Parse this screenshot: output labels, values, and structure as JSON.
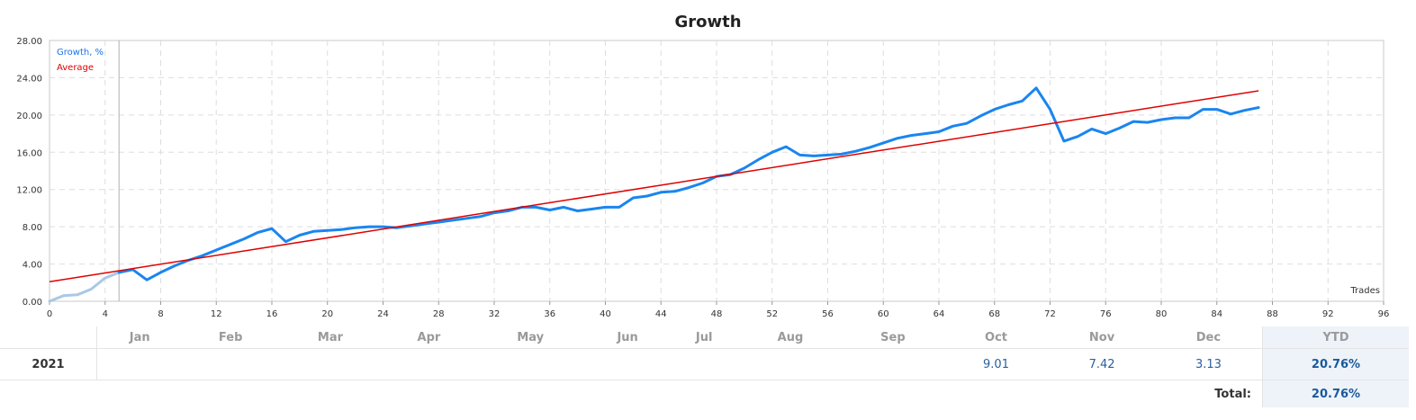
{
  "chart_data": {
    "type": "line",
    "title": "Growth",
    "xlabel": "Trades",
    "ylabel": "",
    "xlim": [
      0,
      96
    ],
    "ylim": [
      0,
      28
    ],
    "x_ticks": [
      0,
      4,
      8,
      12,
      16,
      20,
      24,
      28,
      32,
      36,
      40,
      44,
      48,
      52,
      56,
      60,
      64,
      68,
      72,
      76,
      80,
      84,
      88,
      92,
      96
    ],
    "y_ticks": [
      "0.00",
      "4.00",
      "8.00",
      "12.00",
      "16.00",
      "20.00",
      "24.00",
      "28.00"
    ],
    "grid": true,
    "legend": "top-left",
    "colors": {
      "growth": "#1a85f0",
      "growth_pre": "#a9c8e6",
      "average": "#e00000",
      "marker": "#b0b0b0"
    },
    "marker_x": 5,
    "series": [
      {
        "name": "Growth, %",
        "x": [
          0,
          1,
          2,
          3,
          4,
          5,
          6,
          7,
          8,
          9,
          10,
          11,
          12,
          13,
          14,
          15,
          16,
          17,
          18,
          19,
          20,
          21,
          22,
          23,
          24,
          25,
          26,
          27,
          28,
          29,
          30,
          31,
          32,
          33,
          34,
          35,
          36,
          37,
          38,
          39,
          40,
          41,
          42,
          43,
          44,
          45,
          46,
          47,
          48,
          49,
          50,
          51,
          52,
          53,
          54,
          55,
          56,
          57,
          58,
          59,
          60,
          61,
          62,
          63,
          64,
          65,
          66,
          67,
          68,
          69,
          70,
          71,
          72,
          73,
          74,
          75,
          76,
          77,
          78,
          79,
          80,
          81,
          82,
          83,
          84,
          85,
          86,
          87
        ],
        "y": [
          0.0,
          0.6,
          0.7,
          1.3,
          2.5,
          3.1,
          3.4,
          2.3,
          3.1,
          3.8,
          4.4,
          4.9,
          5.5,
          6.1,
          6.7,
          7.4,
          7.8,
          6.4,
          7.1,
          7.5,
          7.6,
          7.7,
          7.9,
          8.0,
          8.0,
          7.9,
          8.1,
          8.3,
          8.5,
          8.7,
          8.9,
          9.1,
          9.5,
          9.7,
          10.1,
          10.1,
          9.8,
          10.1,
          9.7,
          9.9,
          10.1,
          10.1,
          11.1,
          11.3,
          11.7,
          11.8,
          12.2,
          12.7,
          13.4,
          13.6,
          14.3,
          15.2,
          16.0,
          16.6,
          15.7,
          15.6,
          15.7,
          15.8,
          16.1,
          16.5,
          17.0,
          17.5,
          17.8,
          18.0,
          18.2,
          18.8,
          19.1,
          19.9,
          20.6,
          21.1,
          21.5,
          22.9,
          20.6,
          17.2,
          17.7,
          18.5,
          18.0,
          18.6,
          19.3,
          19.2,
          19.5,
          19.7,
          19.7,
          20.6,
          20.6,
          20.1,
          20.5,
          20.8
        ]
      },
      {
        "name": "Average",
        "x": [
          0,
          87
        ],
        "y": [
          2.1,
          22.6
        ]
      }
    ]
  },
  "summary": {
    "months": [
      "Jan",
      "Feb",
      "Mar",
      "Apr",
      "May",
      "Jun",
      "Jul",
      "Aug",
      "Sep",
      "Oct",
      "Nov",
      "Dec"
    ],
    "ytd_label": "YTD",
    "year": "2021",
    "values": [
      "",
      "",
      "",
      "",
      "",
      "",
      "",
      "",
      "",
      "9.01",
      "7.42",
      "3.13"
    ],
    "ytd": "20.76%",
    "total_label": "Total:",
    "total": "20.76%"
  }
}
